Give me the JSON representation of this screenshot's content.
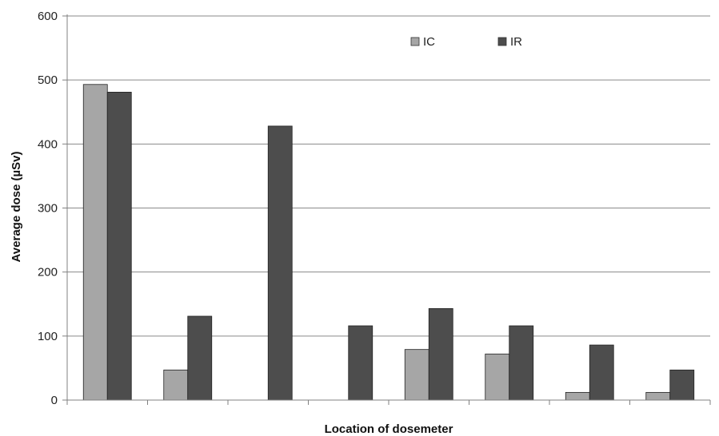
{
  "chart_data": {
    "type": "bar",
    "title": "",
    "xlabel": "Location of dosemeter",
    "ylabel": "Average dose (µSv)",
    "ylim": [
      0,
      600
    ],
    "yticks": [
      "0",
      "100",
      "200",
      "300",
      "400",
      "500",
      "600"
    ],
    "grid": true,
    "legend_position": "top-right",
    "category_count": 8,
    "series": [
      {
        "name": "IC",
        "color": "#a6a6a6",
        "values": [
          493,
          47,
          0,
          0,
          79,
          72,
          12,
          12
        ]
      },
      {
        "name": "IR",
        "color": "#4d4d4d",
        "values": [
          481,
          131,
          428,
          116,
          143,
          116,
          86,
          47
        ]
      }
    ]
  }
}
